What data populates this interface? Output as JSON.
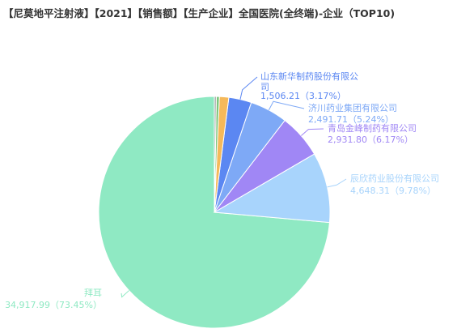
{
  "chart_data": {
    "type": "pie",
    "title": "【尼莫地平注射液】【2021】【销售额】【生产企业】全国医院(全终端)-企业（TOP10)",
    "categories": [
      "拜耳",
      "辰欣药业股份有限公司",
      "青岛金峰制药有限公司",
      "济川药业集团有限公司",
      "山东新华制药股份有限公司",
      null,
      null,
      null
    ],
    "values": [
      34917.99,
      4648.31,
      2931.8,
      2491.71,
      1506.21,
      620,
      200,
      130
    ],
    "value_labels": [
      "34,917.99（73.45%）",
      "4,648.31（9.78%）",
      "2,931.80（6.17%）",
      "2,491.71（5.24%）",
      "1,506.21（3.17%）",
      null,
      null,
      null
    ],
    "colors": [
      "#8fe9c3",
      "#a8d4fc",
      "#a087f5",
      "#7ea9f6",
      "#5b87f2",
      "#f5b95a",
      "#7dc67d",
      "#aaaaaa"
    ]
  }
}
